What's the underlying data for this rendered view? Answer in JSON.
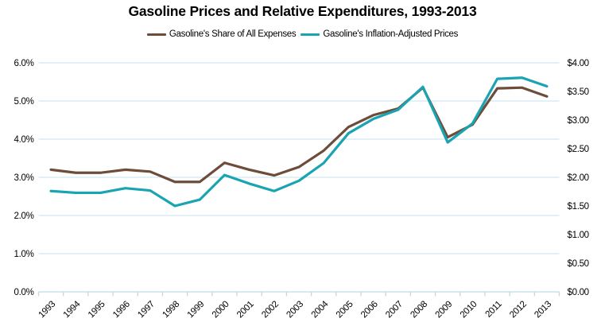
{
  "title": "Gasoline Prices and Relative Expenditures, 1993-2013",
  "legend": [
    {
      "label": "Gasoline's Share of All Expenses",
      "color": "#6E4C3A"
    },
    {
      "label": "Gasoline's Inflation-Adjusted Prices",
      "color": "#1AA4B2"
    }
  ],
  "chart_data": {
    "type": "line",
    "title": "Gasoline Prices and Relative Expenditures, 1993-2013",
    "x_categories": [
      "1993",
      "1994",
      "1995",
      "1996",
      "1997",
      "1998",
      "1999",
      "2000",
      "2001",
      "2002",
      "2003",
      "2004",
      "2005",
      "2006",
      "2007",
      "2008",
      "2009",
      "2010",
      "2011",
      "2012",
      "2013"
    ],
    "series": [
      {
        "name": "Gasoline's Share of All Expenses",
        "axis": "left",
        "color": "#6E4C3A",
        "values": [
          3.2,
          3.12,
          3.12,
          3.2,
          3.15,
          2.88,
          2.88,
          3.38,
          3.2,
          3.05,
          3.27,
          3.7,
          4.32,
          4.63,
          4.8,
          5.35,
          4.05,
          4.38,
          5.33,
          5.35,
          5.12
        ]
      },
      {
        "name": "Gasoline's Inflation-Adjusted Prices",
        "axis": "right",
        "color": "#1AA4B2",
        "values": [
          1.76,
          1.73,
          1.73,
          1.81,
          1.77,
          1.5,
          1.61,
          2.04,
          1.89,
          1.76,
          1.94,
          2.25,
          2.77,
          3.02,
          3.18,
          3.58,
          2.61,
          2.94,
          3.72,
          3.74,
          3.59
        ]
      }
    ],
    "left_axis": {
      "min": 0,
      "max": 6,
      "step": 1,
      "tick_labels": [
        "0.0%",
        "1.0%",
        "2.0%",
        "3.0%",
        "4.0%",
        "5.0%",
        "6.0%"
      ]
    },
    "right_axis": {
      "min": 0,
      "max": 4,
      "step": 0.5,
      "tick_labels": [
        "$0.00",
        "$0.50",
        "$1.00",
        "$1.50",
        "$2.00",
        "$2.50",
        "$3.00",
        "$3.50",
        "$4.00"
      ]
    },
    "grid": "horizontal",
    "gridline_color": "#C9E0F1",
    "axis_color": "#BFD9EC",
    "legend_position": "top",
    "x_label_rotation_deg": -45
  }
}
